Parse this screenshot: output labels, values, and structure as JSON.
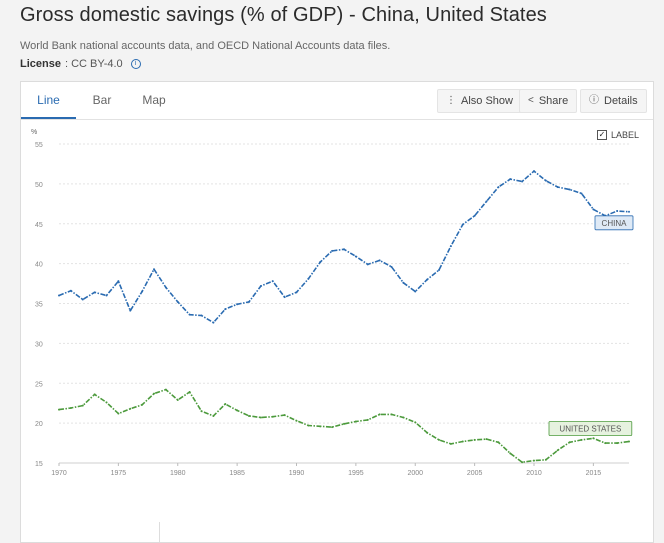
{
  "page": {
    "title": "Gross domestic savings (% of GDP) - China, United States",
    "subtitle": "World Bank national accounts data, and OECD National Accounts data files.",
    "license_label": "License",
    "license_value": ": CC BY-4.0"
  },
  "tabs": [
    {
      "label": "Line"
    },
    {
      "label": "Bar"
    },
    {
      "label": "Map"
    }
  ],
  "toolbar": {
    "also_show": "Also Show",
    "share": "Share",
    "details": "Details"
  },
  "label_toggle": {
    "text": "LABEL",
    "checked": true
  },
  "chart_data": {
    "type": "line",
    "title": "Gross domestic savings (% of GDP)",
    "ylabel": "%",
    "xlabel": "",
    "xlim": [
      1970,
      2018
    ],
    "ylim": [
      15,
      55
    ],
    "x_ticks": [
      1970,
      1975,
      1980,
      1985,
      1990,
      1995,
      2000,
      2005,
      2010,
      2015
    ],
    "y_ticks": [
      15,
      20,
      25,
      30,
      35,
      40,
      45,
      50,
      55
    ],
    "grid": true,
    "series": [
      {
        "name": "CHINA",
        "color": "#2a6bb1",
        "x": [
          1970,
          1971,
          1972,
          1973,
          1974,
          1975,
          1976,
          1977,
          1978,
          1979,
          1980,
          1981,
          1982,
          1983,
          1984,
          1985,
          1986,
          1987,
          1988,
          1989,
          1990,
          1991,
          1992,
          1993,
          1994,
          1995,
          1996,
          1997,
          1998,
          1999,
          2000,
          2001,
          2002,
          2003,
          2004,
          2005,
          2006,
          2007,
          2008,
          2009,
          2010,
          2011,
          2012,
          2013,
          2014,
          2015,
          2016,
          2017,
          2018
        ],
        "values": [
          36.0,
          36.6,
          35.5,
          36.4,
          36.0,
          37.8,
          34.1,
          36.5,
          39.3,
          37.0,
          35.2,
          33.6,
          33.5,
          32.6,
          34.3,
          34.9,
          35.2,
          37.2,
          37.8,
          35.8,
          36.4,
          38.1,
          40.2,
          41.6,
          41.8,
          40.9,
          39.9,
          40.4,
          39.6,
          37.6,
          36.5,
          38.0,
          39.2,
          42.2,
          44.9,
          46.0,
          47.8,
          49.6,
          50.6,
          50.3,
          51.6,
          50.4,
          49.6,
          49.3,
          48.8,
          46.8,
          46.0,
          46.6,
          46.5
        ]
      },
      {
        "name": "UNITED STATES",
        "color": "#4c9a3c",
        "x": [
          1970,
          1971,
          1972,
          1973,
          1974,
          1975,
          1976,
          1977,
          1978,
          1979,
          1980,
          1981,
          1982,
          1983,
          1984,
          1985,
          1986,
          1987,
          1988,
          1989,
          1990,
          1991,
          1992,
          1993,
          1994,
          1995,
          1996,
          1997,
          1998,
          1999,
          2000,
          2001,
          2002,
          2003,
          2004,
          2005,
          2006,
          2007,
          2008,
          2009,
          2010,
          2011,
          2012,
          2013,
          2014,
          2015,
          2016,
          2017,
          2018
        ],
        "values": [
          21.7,
          21.9,
          22.2,
          23.6,
          22.6,
          21.2,
          21.8,
          22.3,
          23.7,
          24.2,
          22.9,
          23.9,
          21.5,
          20.9,
          22.4,
          21.6,
          20.9,
          20.7,
          20.8,
          21.0,
          20.3,
          19.7,
          19.6,
          19.5,
          19.9,
          20.2,
          20.4,
          21.1,
          21.1,
          20.7,
          20.1,
          18.8,
          17.9,
          17.4,
          17.7,
          17.9,
          18.0,
          17.6,
          16.2,
          15.1,
          15.3,
          15.4,
          16.6,
          17.6,
          17.9,
          18.1,
          17.5,
          17.5,
          17.7
        ]
      }
    ]
  }
}
